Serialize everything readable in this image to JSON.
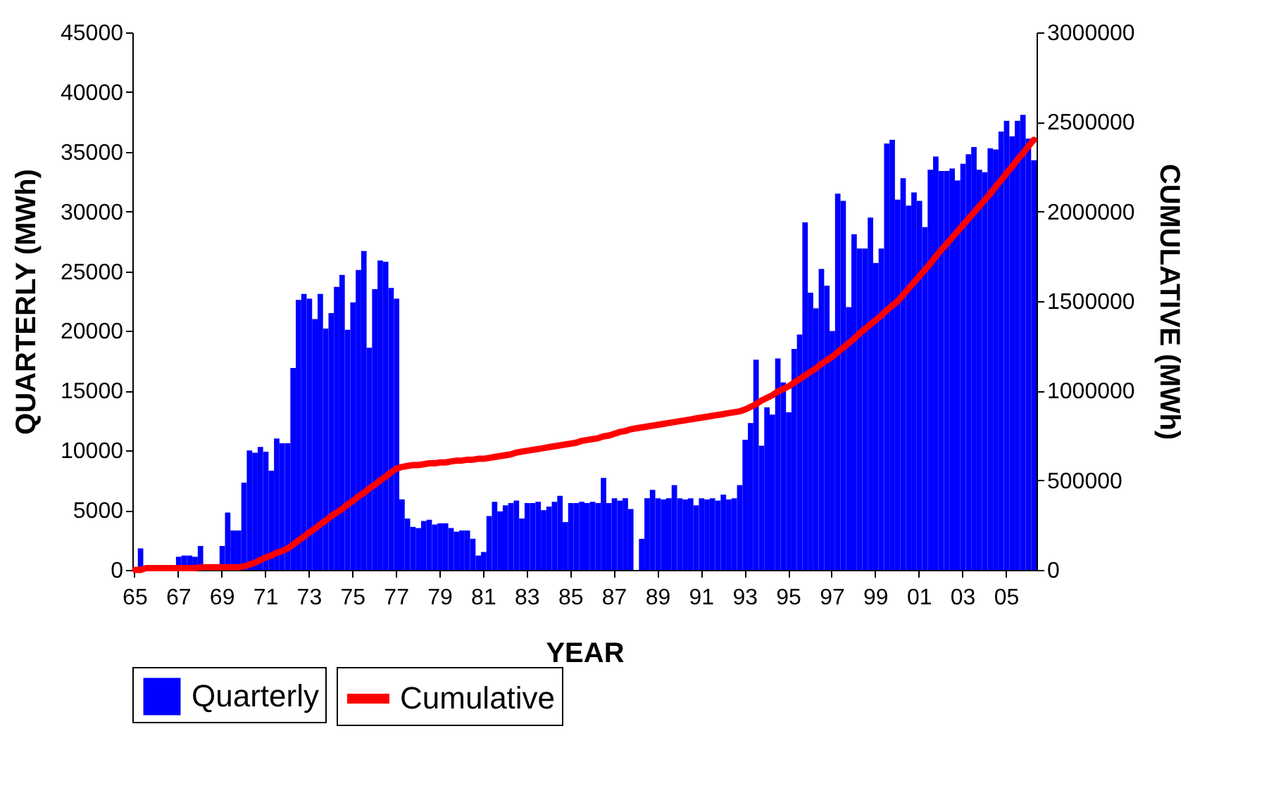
{
  "chart_data": {
    "type": "bar",
    "xlabel": "YEAR",
    "ylabel": "QUARTERLY (MWh)",
    "y2label": "CUMULATIVE (MWh)",
    "categories": [
      "65",
      null,
      null,
      null,
      null,
      null,
      null,
      null,
      "67",
      null,
      null,
      null,
      null,
      null,
      null,
      null,
      "69",
      null,
      null,
      null,
      null,
      null,
      null,
      null,
      "71",
      null,
      null,
      null,
      null,
      null,
      null,
      null,
      "73",
      null,
      null,
      null,
      null,
      null,
      null,
      null,
      "75",
      null,
      null,
      null,
      null,
      null,
      null,
      null,
      "77",
      null,
      null,
      null,
      null,
      null,
      null,
      null,
      "79",
      null,
      null,
      null,
      null,
      null,
      null,
      null,
      "81",
      null,
      null,
      null,
      null,
      null,
      null,
      null,
      "83",
      null,
      null,
      null,
      null,
      null,
      null,
      null,
      "85",
      null,
      null,
      null,
      null,
      null,
      null,
      null,
      "87",
      null,
      null,
      null,
      null,
      null,
      null,
      null,
      "89",
      null,
      null,
      null,
      null,
      null,
      null,
      null,
      "91",
      null,
      null,
      null,
      null,
      null,
      null,
      null,
      "93",
      null,
      null,
      null,
      null,
      null,
      null,
      null,
      "95",
      null,
      null,
      null,
      null,
      null,
      null,
      null,
      "97",
      null,
      null,
      null,
      null,
      null,
      null,
      null,
      "99",
      null,
      null,
      null,
      null,
      null,
      null,
      null,
      "01",
      null,
      null,
      null,
      null,
      null,
      null,
      null,
      "03",
      null,
      null,
      null,
      null,
      null,
      null,
      null,
      "05",
      null,
      null,
      null,
      null,
      null
    ],
    "series": [
      {
        "name": "Quarterly",
        "color": "#0000ff",
        "values": [
          0,
          1800,
          0,
          0,
          0,
          0,
          0,
          0,
          1100,
          1200,
          1200,
          1100,
          2000,
          0,
          0,
          0,
          2000,
          4800,
          3300,
          3300,
          7300,
          10000,
          9800,
          10300,
          9900,
          8300,
          11000,
          10600,
          10600,
          16900,
          22600,
          23100,
          22700,
          21000,
          23100,
          20200,
          21500,
          23700,
          24700,
          20100,
          22400,
          25100,
          26700,
          18600,
          23500,
          25900,
          25800,
          23600,
          22700,
          5900,
          4300,
          3600,
          3500,
          4100,
          4200,
          3800,
          3900,
          3900,
          3500,
          3200,
          3300,
          3300,
          2600,
          1200,
          1500,
          4500,
          5700,
          4900,
          5400,
          5600,
          5800,
          4300,
          5600,
          5600,
          5700,
          5000,
          5300,
          5700,
          6200,
          4000,
          5600,
          5600,
          5700,
          5600,
          5700,
          5600,
          7700,
          5600,
          6000,
          5800,
          6000,
          5100,
          0,
          2600,
          6000,
          6700,
          6000,
          5900,
          6000,
          7100,
          6000,
          5900,
          6000,
          5400,
          6000,
          5900,
          6000,
          5800,
          6300,
          5900,
          6000,
          7100,
          10900,
          12300,
          17600,
          10400,
          13600,
          13000,
          17700,
          15700,
          13200,
          18500,
          19700,
          29100,
          23200,
          21900,
          25200,
          23800,
          20000,
          31500,
          30900,
          22000,
          28100,
          26900,
          26900,
          29500,
          25700,
          26900,
          35700,
          36000,
          31000,
          32800,
          30500,
          31600,
          30900,
          28700,
          33500,
          34600,
          33400,
          33400,
          33600,
          32600,
          34000,
          34800,
          35400,
          33500,
          33300,
          35300,
          35200,
          36700,
          37600,
          36300,
          37600,
          38100,
          36100,
          34300
        ]
      },
      {
        "name": "Cumulative",
        "type": "line",
        "axis": "y2",
        "color": "#ff0000",
        "values": [
          0,
          0,
          10000,
          10000,
          10000,
          10000,
          10000,
          10000,
          10000,
          10000,
          10000,
          10000,
          15000,
          15000,
          15000,
          15000,
          15000,
          15000,
          15000,
          15000,
          20000,
          30000,
          40000,
          55000,
          70000,
          80000,
          95000,
          105000,
          120000,
          140000,
          165000,
          185000,
          210000,
          230000,
          255000,
          275000,
          300000,
          320000,
          340000,
          365000,
          385000,
          410000,
          430000,
          455000,
          475000,
          500000,
          520000,
          545000,
          565000,
          575000,
          580000,
          585000,
          585000,
          590000,
          595000,
          595000,
          600000,
          600000,
          605000,
          610000,
          610000,
          615000,
          615000,
          620000,
          620000,
          625000,
          630000,
          635000,
          640000,
          645000,
          655000,
          660000,
          665000,
          670000,
          675000,
          680000,
          685000,
          690000,
          695000,
          700000,
          705000,
          710000,
          720000,
          725000,
          730000,
          735000,
          745000,
          750000,
          760000,
          770000,
          775000,
          785000,
          790000,
          795000,
          800000,
          805000,
          810000,
          815000,
          820000,
          825000,
          830000,
          835000,
          840000,
          845000,
          850000,
          855000,
          860000,
          865000,
          870000,
          875000,
          880000,
          885000,
          895000,
          910000,
          925000,
          945000,
          960000,
          975000,
          995000,
          1010000,
          1025000,
          1045000,
          1065000,
          1085000,
          1105000,
          1125000,
          1150000,
          1170000,
          1190000,
          1215000,
          1240000,
          1265000,
          1290000,
          1320000,
          1345000,
          1370000,
          1395000,
          1420000,
          1450000,
          1475000,
          1500000,
          1535000,
          1570000,
          1605000,
          1640000,
          1675000,
          1710000,
          1750000,
          1785000,
          1820000,
          1855000,
          1890000,
          1925000,
          1960000,
          1995000,
          2030000,
          2065000,
          2100000,
          2140000,
          2175000,
          2215000,
          2250000,
          2290000,
          2325000,
          2365000,
          2400000
        ]
      }
    ],
    "ylim": [
      0,
      45000
    ],
    "yticks": [
      0,
      5000,
      10000,
      15000,
      20000,
      25000,
      30000,
      35000,
      40000,
      45000
    ],
    "y2lim": [
      0,
      3000000
    ],
    "y2ticks": [
      0,
      500000,
      1000000,
      1500000,
      2000000,
      2500000,
      3000000
    ],
    "legend": "bottom"
  }
}
